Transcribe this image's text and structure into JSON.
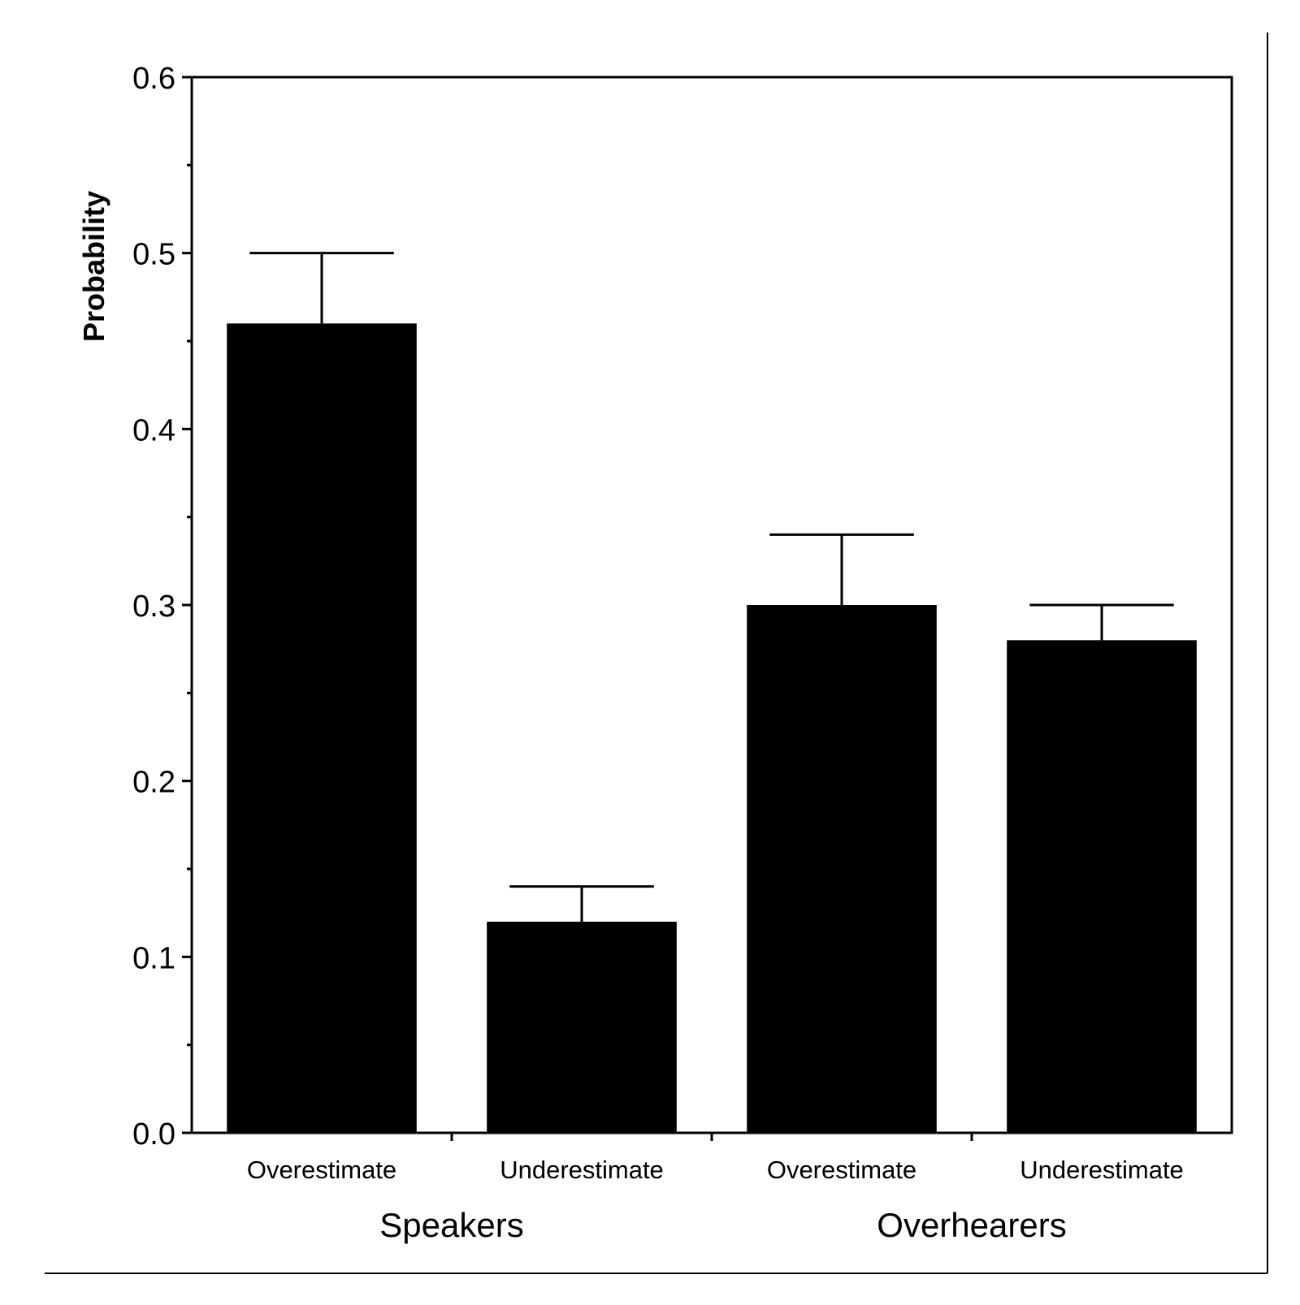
{
  "chart_data": {
    "type": "bar",
    "title": "",
    "xlabel": "",
    "ylabel": "Probability",
    "ylim": [
      0,
      0.6
    ],
    "yticks": [
      "0.0",
      "0.1",
      "0.2",
      "0.3",
      "0.4",
      "0.5",
      "0.6"
    ],
    "yticks_values": [
      0,
      0.1,
      0.2,
      0.3,
      0.4,
      0.5,
      0.6
    ],
    "grid": false,
    "legend": "none",
    "groups": [
      {
        "name": "Speakers",
        "bars": [
          {
            "category": "Overestimate",
            "value": 0.46,
            "error": 0.04
          },
          {
            "category": "Underestimate",
            "value": 0.12,
            "error": 0.02
          }
        ]
      },
      {
        "name": "Overhearers",
        "bars": [
          {
            "category": "Overestimate",
            "value": 0.3,
            "error": 0.04
          },
          {
            "category": "Underestimate",
            "value": 0.28,
            "error": 0.02
          }
        ]
      }
    ],
    "bar_color": "#000000",
    "axis_color": "#000000"
  }
}
